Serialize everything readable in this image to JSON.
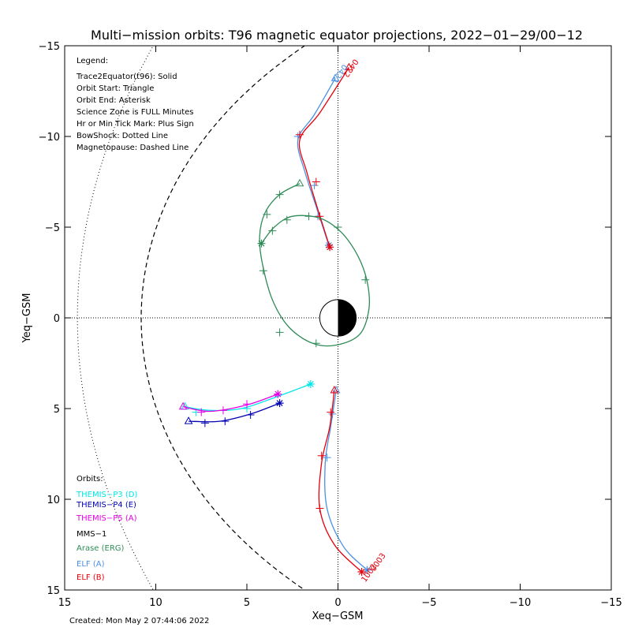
{
  "chart_data": {
    "type": "line",
    "title": "Multi−mission orbits: T96 magnetic equator projections, 2022−01−29/00−12",
    "xlabel": "Xeq−GSM",
    "ylabel": "Yeq−GSM",
    "xlim": [
      15,
      -15
    ],
    "ylim": [
      -15,
      15
    ],
    "x_ticks": [
      15,
      10,
      5,
      0,
      -5,
      -10,
      -15
    ],
    "x_tick_labels": [
      "15",
      "10",
      "5",
      "0",
      "−5",
      "−10",
      "−15"
    ],
    "y_ticks": [
      -15,
      -10,
      -5,
      0,
      5,
      10,
      15
    ],
    "y_tick_labels": [
      "−15",
      "−10",
      "−5",
      "0",
      "5",
      "10",
      "15"
    ],
    "created": "Created: Mon May  2 07:44:06 2022",
    "legend": {
      "title": "Legend:",
      "lines": [
        "Trace2Equator(t96): Solid",
        "Orbit Start: Triangle",
        "Orbit End: Asterisk",
        "Science Zone is FULL Minutes",
        "Hr or Min Tick Mark: Plus Sign",
        "BowShock: Dotted Line",
        "Magnetopause: Dashed Line"
      ]
    },
    "orbits_legend": {
      "title": "Orbits:",
      "items": [
        {
          "label": "THEMIS−P3 (D)",
          "color": "#00e6e6"
        },
        {
          "label": "THEMIS−P4 (E)",
          "color": "#0000b4"
        },
        {
          "label": "THEMIS−P5 (A)",
          "color": "#e600e6"
        },
        {
          "label": "MMS−1",
          "color": "#000000"
        },
        {
          "label": "Arase (ERG)",
          "color": "#2e8b57"
        },
        {
          "label": "ELF (A)",
          "color": "#4a90e2"
        },
        {
          "label": "ELF (B)",
          "color": "#e8000b"
        }
      ]
    },
    "annotations": [
      {
        "text": "0422",
        "x": -0.9,
        "y": -14.3,
        "color": "#e8000b"
      },
      {
        "text": "0422",
        "x": -0.3,
        "y": -14.0,
        "color": "#4a90e2"
      },
      {
        "text": "1002",
        "x": -1.5,
        "y": 14.6,
        "color": "#e8000b"
      },
      {
        "text": "0003",
        "x": -2.0,
        "y": 14.0,
        "color": "#e8000b"
      }
    ],
    "series": [
      {
        "name": "ELF (A)",
        "color": "#4a90e2",
        "points": [
          [
            0.15,
            -13.2
          ],
          [
            1.3,
            -11.2
          ],
          [
            2.2,
            -9.8
          ],
          [
            1.8,
            -8.0
          ],
          [
            1.15,
            -6.0
          ],
          [
            0.5,
            -4.0
          ]
        ],
        "ticks": [
          [
            2.2,
            -10.0
          ],
          [
            1.3,
            -7.3
          ],
          [
            1.1,
            -5.6
          ]
        ],
        "start": [
          0.15,
          -13.2
        ],
        "end": [
          0.5,
          -4.0
        ]
      },
      {
        "name": "ELF (B)",
        "color": "#e8000b",
        "points": [
          [
            -0.6,
            -13.8
          ],
          [
            1.0,
            -11.3
          ],
          [
            2.1,
            -9.8
          ],
          [
            1.7,
            -8.0
          ],
          [
            1.05,
            -5.8
          ],
          [
            0.45,
            -3.9
          ]
        ],
        "ticks": [
          [
            2.1,
            -10.1
          ],
          [
            1.2,
            -7.5
          ],
          [
            1.0,
            -5.6
          ]
        ],
        "start": [
          -0.6,
          -13.8
        ],
        "end": [
          0.45,
          -3.9
        ]
      },
      {
        "name": "ELF (A)",
        "color": "#4a90e2",
        "points": [
          [
            0.1,
            4.0
          ],
          [
            0.4,
            6.0
          ],
          [
            0.7,
            8.0
          ],
          [
            0.6,
            10.5
          ],
          [
            -0.3,
            12.6
          ],
          [
            -1.6,
            13.9
          ]
        ],
        "ticks": [
          [
            0.3,
            5.3
          ],
          [
            0.6,
            7.7
          ],
          [
            -1.6,
            13.9
          ]
        ],
        "start": [
          0.1,
          4.0
        ],
        "end": [
          -1.6,
          13.9
        ]
      },
      {
        "name": "ELF (B)",
        "color": "#e8000b",
        "points": [
          [
            0.2,
            4.0
          ],
          [
            0.45,
            6.0
          ],
          [
            0.9,
            8.0
          ],
          [
            1.0,
            10.5
          ],
          [
            0.2,
            12.5
          ],
          [
            -1.3,
            14.0
          ]
        ],
        "ticks": [
          [
            0.4,
            5.2
          ],
          [
            0.9,
            7.6
          ],
          [
            1.0,
            10.5
          ],
          [
            -1.3,
            14.0
          ]
        ],
        "start": [
          0.2,
          4.0
        ],
        "end": [
          -1.3,
          14.0
        ]
      },
      {
        "name": "Arase (ERG)",
        "color": "#2e8b57",
        "points": [
          [
            2.1,
            -7.4
          ],
          [
            3.2,
            -6.8
          ],
          [
            4.0,
            -5.8
          ],
          [
            4.3,
            -4.5
          ],
          [
            4.15,
            -3.0
          ],
          [
            3.6,
            -1.0
          ],
          [
            2.7,
            0.5
          ],
          [
            1.4,
            1.4
          ],
          [
            0.1,
            1.5
          ],
          [
            -1.2,
            0.9
          ],
          [
            -1.7,
            -0.5
          ],
          [
            -1.6,
            -2.0
          ],
          [
            -1.1,
            -3.4
          ],
          [
            -0.2,
            -4.7
          ],
          [
            1.0,
            -5.5
          ],
          [
            2.5,
            -5.6
          ],
          [
            3.5,
            -5.0
          ],
          [
            4.2,
            -4.1
          ]
        ],
        "ticks": [
          [
            3.2,
            -6.8
          ],
          [
            3.9,
            -5.7
          ],
          [
            4.1,
            -2.6
          ],
          [
            3.2,
            0.8
          ],
          [
            1.2,
            1.4
          ],
          [
            -1.5,
            -2.1
          ],
          [
            0.0,
            -5.0
          ],
          [
            1.6,
            -5.6
          ],
          [
            2.8,
            -5.4
          ],
          [
            3.6,
            -4.8
          ]
        ],
        "start": [
          2.1,
          -7.4
        ],
        "end": [
          4.2,
          -4.1
        ]
      },
      {
        "name": "THEMIS−P3 (D)",
        "color": "#00e6e6",
        "points": [
          [
            8.4,
            4.9
          ],
          [
            7.0,
            5.1
          ],
          [
            5.3,
            5.0
          ],
          [
            3.5,
            4.4
          ],
          [
            1.5,
            3.65
          ]
        ],
        "ticks": [
          [
            7.8,
            5.2
          ],
          [
            5.0,
            5.0
          ]
        ],
        "start": [
          8.4,
          4.9
        ],
        "end": [
          1.5,
          3.65
        ]
      },
      {
        "name": "THEMIS−P4 (E)",
        "color": "#0000b4",
        "points": [
          [
            8.2,
            5.7
          ],
          [
            6.5,
            5.7
          ],
          [
            4.8,
            5.3
          ],
          [
            3.2,
            4.7
          ]
        ],
        "ticks": [
          [
            7.3,
            5.8
          ],
          [
            6.2,
            5.7
          ],
          [
            4.8,
            5.35
          ]
        ],
        "start": [
          8.2,
          5.7
        ],
        "end": [
          3.2,
          4.7
        ]
      },
      {
        "name": "THEMIS−P5 (A)",
        "color": "#e600e6",
        "points": [
          [
            8.5,
            4.9
          ],
          [
            7.0,
            5.15
          ],
          [
            5.0,
            4.8
          ],
          [
            3.3,
            4.2
          ]
        ],
        "ticks": [
          [
            7.5,
            5.2
          ],
          [
            6.3,
            5.1
          ],
          [
            5.0,
            4.75
          ]
        ],
        "start": [
          8.5,
          4.9
        ],
        "end": [
          3.3,
          4.2
        ]
      }
    ],
    "earth": {
      "radius": 1.0,
      "day_side_color": "#ffffff",
      "night_side_color": "#000000"
    }
  }
}
